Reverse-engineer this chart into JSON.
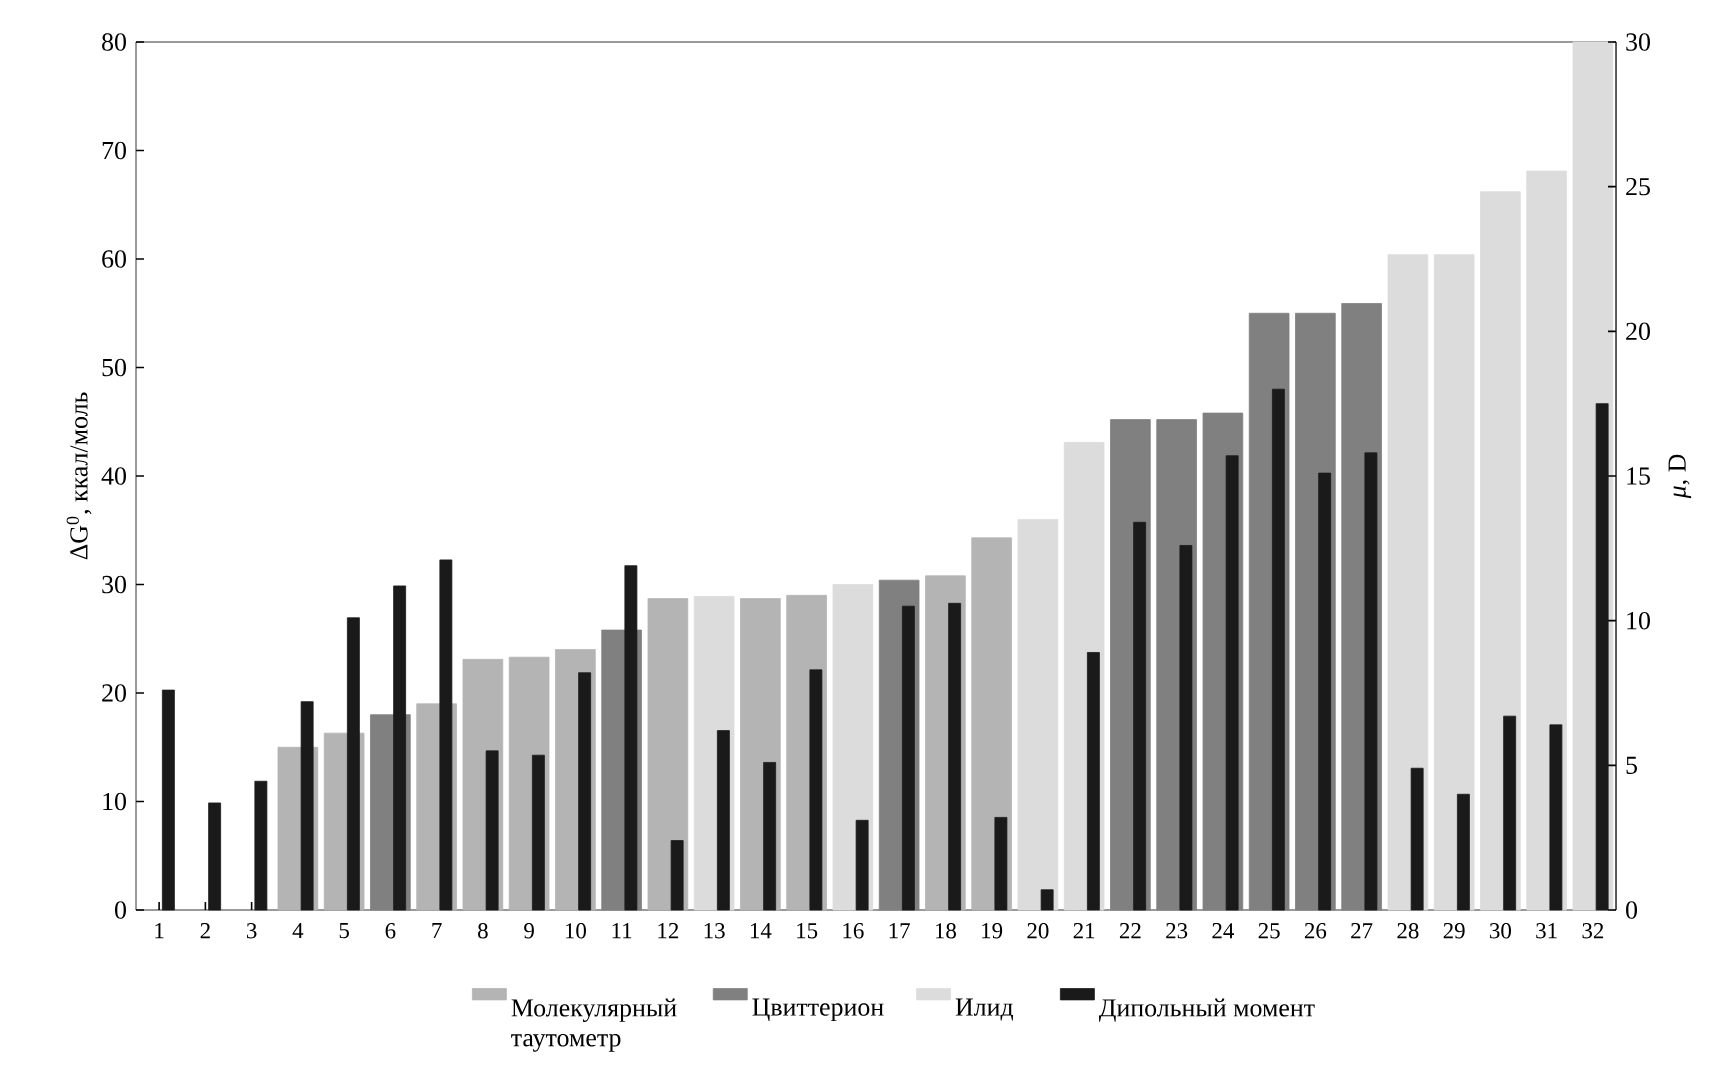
{
  "chart_data": {
    "type": "bar",
    "categories": [
      "1",
      "2",
      "3",
      "4",
      "5",
      "6",
      "7",
      "8",
      "9",
      "10",
      "11",
      "12",
      "13",
      "14",
      "15",
      "16",
      "17",
      "18",
      "19",
      "20",
      "21",
      "22",
      "23",
      "24",
      "25",
      "26",
      "27",
      "28",
      "29",
      "30",
      "31",
      "32"
    ],
    "ylabel": "ΔG$^{0}$, ккал/моль",
    "y2label": "*μ*, D",
    "series": [
      {
        "name": "Молекулярный таутометр",
        "color": "#b4b4b4",
        "values": [
          null,
          null,
          null,
          15,
          16.3,
          null,
          19,
          23.1,
          23.3,
          24,
          null,
          28.7,
          null,
          28.7,
          29,
          null,
          null,
          30.8,
          34.3,
          null,
          null,
          null,
          null,
          null,
          null,
          null,
          null,
          null,
          null,
          null,
          null,
          null
        ]
      },
      {
        "name": "Цвиттерион",
        "color": "#808080",
        "values": [
          null,
          null,
          null,
          null,
          null,
          18,
          null,
          null,
          null,
          null,
          25.8,
          null,
          null,
          null,
          null,
          null,
          30.4,
          null,
          null,
          null,
          null,
          45.2,
          45.2,
          45.8,
          55,
          55,
          55.9,
          null,
          null,
          null,
          null,
          null
        ]
      },
      {
        "name": "Илид",
        "color": "#dcdcdc",
        "values": [
          null,
          null,
          null,
          null,
          null,
          null,
          null,
          null,
          null,
          null,
          null,
          null,
          28.9,
          null,
          null,
          30,
          null,
          null,
          null,
          36,
          43.1,
          null,
          null,
          null,
          null,
          null,
          null,
          60.4,
          60.4,
          66.2,
          68.1,
          80
        ]
      },
      {
        "name": "Дипольный момент",
        "color": "#1a1a1a",
        "axis": "y2",
        "values": [
          7.6,
          3.7,
          4.45,
          7.2,
          10.1,
          11.2,
          12.1,
          5.5,
          5.35,
          8.2,
          11.9,
          2.4,
          6.2,
          5.1,
          8.3,
          3.1,
          10.5,
          10.6,
          3.2,
          0.7,
          8.9,
          13.4,
          12.6,
          15.7,
          18,
          15.1,
          15.8,
          4.9,
          4.0,
          6.7,
          6.4,
          17.5
        ]
      }
    ],
    "ylim": [
      0,
      80
    ],
    "yticks": [
      0,
      10,
      20,
      30,
      40,
      50,
      60,
      70,
      80
    ],
    "y2lim": [
      0,
      30
    ],
    "y2ticks": [
      0,
      5,
      10,
      15,
      20,
      25,
      30
    ],
    "legend": "bottom"
  }
}
